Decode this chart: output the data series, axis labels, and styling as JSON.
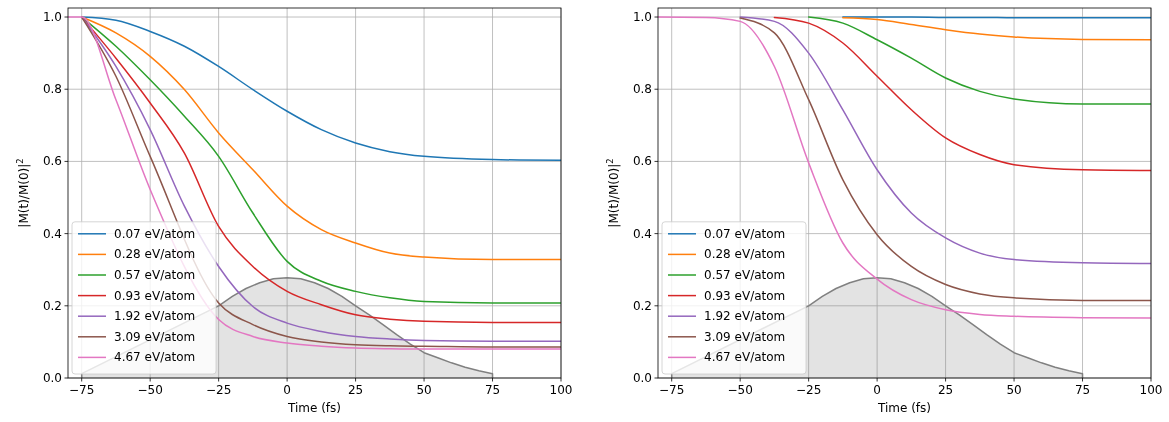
{
  "chart_data": [
    {
      "type": "line",
      "xlabel": "Time (fs)",
      "ylabel": "|M(t)/M(0)|$^{2}$",
      "xlim": [
        -80,
        100
      ],
      "ylim": [
        0,
        1.025
      ],
      "xticks": [
        {
          "value": -75,
          "label": "−75"
        },
        {
          "value": -50,
          "label": "−50"
        },
        {
          "value": -25,
          "label": "−25"
        },
        0,
        25,
        50,
        75,
        100
      ],
      "yticks": [
        {
          "value": 0,
          "label": "0.0"
        },
        {
          "value": 0.2,
          "label": "0.2"
        },
        {
          "value": 0.4,
          "label": "0.4"
        },
        {
          "value": 0.6,
          "label": "0.6"
        },
        {
          "value": 0.8,
          "label": "0.8"
        },
        {
          "value": 1,
          "label": "1.0"
        }
      ],
      "grid": true,
      "legend": "lower left",
      "line_style": "solid",
      "x": [
        -80,
        -75,
        -62.5,
        -50,
        -37.5,
        -25,
        -12.5,
        0,
        12.5,
        25,
        37.5,
        50,
        75,
        100
      ],
      "series": [
        {
          "type": "area",
          "color": "#808080",
          "x": [
            -75,
            -75,
            -70,
            -65,
            -60,
            -55,
            -50,
            -45,
            -40,
            -35,
            -30,
            -25,
            -20,
            -15,
            -10,
            -5,
            0,
            5,
            10,
            15,
            20,
            25,
            30,
            35,
            40,
            45,
            50,
            55,
            60,
            65,
            70,
            75,
            75
          ],
          "values": [
            0,
            0.012,
            null,
            null,
            null,
            null,
            null,
            null,
            null,
            null,
            null,
            0.2,
            0.226,
            0.248,
            0.264,
            0.275,
            0.278,
            0.275,
            0.264,
            0.248,
            0.226,
            0.2,
            0.175,
            0.148,
            0.12,
            0.094,
            0.07,
            0.056,
            0.042,
            0.03,
            0.02,
            0.012,
            0
          ]
        },
        {
          "name": "0.07 eV/atom",
          "color": "#1f77b4",
          "values": [
            null,
            1,
            0.991,
            0.96,
            0.919,
            0.863,
            0.799,
            0.739,
            0.688,
            0.651,
            0.627,
            0.614,
            0.605,
            0.603
          ]
        },
        {
          "name": "0.28 eV/atom",
          "color": "#ff7f0e",
          "values": [
            null,
            1,
            0.956,
            0.891,
            0.799,
            0.679,
            0.577,
            0.476,
            0.411,
            0.374,
            0.346,
            0.335,
            0.328,
            0.328
          ]
        },
        {
          "name": "0.57 eV/atom",
          "color": "#2ca02c",
          "values": [
            null,
            1,
            0.919,
            0.826,
            0.725,
            0.614,
            0.457,
            0.323,
            0.268,
            0.24,
            0.222,
            0.212,
            0.208,
            0.208
          ]
        },
        {
          "name": "0.93 eV/atom",
          "color": "#d62728",
          "values": [
            null,
            1,
            0.886,
            0.762,
            0.623,
            0.42,
            0.309,
            0.24,
            0.203,
            0.175,
            0.163,
            0.157,
            0.154,
            0.154
          ]
        },
        {
          "name": "1.92 eV/atom",
          "color": "#9467bd",
          "values": [
            null,
            1,
            0.863,
            0.688,
            0.476,
            0.309,
            0.198,
            0.152,
            0.129,
            0.115,
            0.108,
            0.104,
            0.102,
            0.102
          ]
        },
        {
          "name": "3.09 eV/atom",
          "color": "#8c564b",
          "values": [
            null,
            1,
            0.836,
            0.614,
            null,
            0.208,
            0.148,
            0.115,
            0.1,
            0.092,
            0.089,
            0.088,
            0.086,
            0.086
          ]
        },
        {
          "name": "4.67 eV/atom",
          "color": "#e377c2",
          "values": [
            1,
            1,
            0.771,
            0.522,
            null,
            0.162,
            0.115,
            0.097,
            0.088,
            0.083,
            0.081,
            0.08,
            0.08,
            0.08
          ]
        }
      ]
    },
    {
      "type": "line",
      "xlabel": "Time (fs)",
      "ylabel": "|M(t)/M(0)|$^{2}$",
      "xlim": [
        -80,
        100
      ],
      "ylim": [
        0,
        1.025
      ],
      "xticks": [
        {
          "value": -75,
          "label": "−75"
        },
        {
          "value": -50,
          "label": "−50"
        },
        {
          "value": -25,
          "label": "−25"
        },
        0,
        25,
        50,
        75,
        100
      ],
      "yticks": [
        {
          "value": 0,
          "label": "0.0"
        },
        {
          "value": 0.2,
          "label": "0.2"
        },
        {
          "value": 0.4,
          "label": "0.4"
        },
        {
          "value": 0.6,
          "label": "0.6"
        },
        {
          "value": 0.8,
          "label": "0.8"
        },
        {
          "value": 1,
          "label": "1.0"
        }
      ],
      "grid": true,
      "legend": "lower left",
      "line_style": "solid",
      "x": [
        -80,
        -62.5,
        -50,
        -37.5,
        -25,
        -12.5,
        0,
        12.5,
        25,
        37.5,
        50,
        75,
        100
      ],
      "series": [
        {
          "type": "area",
          "color": "#808080",
          "x": [
            -75,
            -75,
            -70,
            -65,
            -60,
            -55,
            -50,
            -45,
            -40,
            -35,
            -30,
            -25,
            -20,
            -15,
            -10,
            -5,
            0,
            5,
            10,
            15,
            20,
            25,
            30,
            35,
            40,
            45,
            50,
            55,
            60,
            65,
            70,
            75,
            75
          ],
          "values": [
            0,
            0.012,
            null,
            null,
            null,
            null,
            null,
            null,
            null,
            null,
            null,
            0.2,
            0.226,
            0.248,
            0.264,
            0.275,
            0.278,
            0.275,
            0.264,
            0.248,
            0.226,
            0.2,
            0.175,
            0.148,
            0.12,
            0.094,
            0.07,
            0.056,
            0.042,
            0.03,
            0.02,
            0.012,
            0
          ]
        },
        {
          "name": "0.07 eV/atom",
          "color": "#1f77b4",
          "values": [
            null,
            null,
            null,
            null,
            null,
            1,
            1,
            1,
            0.999,
            0.999,
            0.998,
            0.998,
            0.998
          ]
        },
        {
          "name": "0.28 eV/atom",
          "color": "#ff7f0e",
          "values": [
            null,
            null,
            null,
            null,
            null,
            0.998,
            0.993,
            0.979,
            0.965,
            0.953,
            0.945,
            0.938,
            0.937
          ]
        },
        {
          "name": "0.57 eV/atom",
          "color": "#2ca02c",
          "values": [
            null,
            null,
            null,
            null,
            1,
            0.983,
            0.937,
            0.886,
            0.831,
            0.794,
            0.773,
            0.759,
            0.759
          ]
        },
        {
          "name": "0.93 eV/atom",
          "color": "#d62728",
          "values": [
            null,
            null,
            null,
            0.999,
            0.983,
            0.928,
            0.836,
            0.743,
            0.665,
            0.619,
            0.591,
            0.577,
            0.575
          ]
        },
        {
          "name": "1.92 eV/atom",
          "color": "#9467bd",
          "values": [
            null,
            null,
            1,
            0.988,
            0.9,
            0.743,
            0.577,
            0.457,
            0.388,
            0.346,
            0.328,
            0.319,
            0.317
          ]
        },
        {
          "name": "3.09 eV/atom",
          "color": "#8c564b",
          "values": [
            null,
            null,
            0.997,
            0.956,
            0.771,
            0.549,
            0.397,
            0.309,
            0.259,
            0.233,
            0.222,
            0.215,
            0.215
          ]
        },
        {
          "name": "4.67 eV/atom",
          "color": "#e377c2",
          "values": [
            1,
            0.999,
            0.988,
            0.863,
            0.596,
            0.374,
            0.274,
            0.217,
            0.189,
            0.176,
            0.171,
            0.167,
            0.166
          ]
        }
      ]
    }
  ]
}
